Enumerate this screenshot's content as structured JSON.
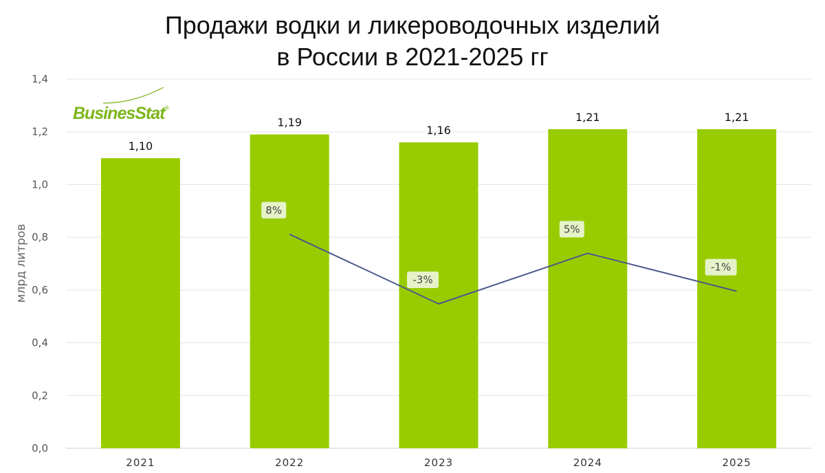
{
  "title_line1": "Продажи водки и ликероводочных изделий",
  "title_line2": "в России в 2021-2025 гг",
  "logo": {
    "text": "BusinesStat",
    "mark": "®",
    "color": "#7db51a"
  },
  "colors": {
    "bar": "#99cc00",
    "line": "#4a5a8a",
    "pct_box": "#e6f2c8",
    "grid": "#e3e3e3"
  },
  "chart_data": {
    "type": "bar",
    "categories": [
      "2021",
      "2022",
      "2023",
      "2024",
      "2025"
    ],
    "values": [
      1.1,
      1.19,
      1.16,
      1.21,
      1.21
    ],
    "value_labels": [
      "1,10",
      "1,19",
      "1,16",
      "1,21",
      "1,21"
    ],
    "ylabel": "млрд литров",
    "ylim": [
      0,
      1.4
    ],
    "yticks": [
      0,
      0.2,
      0.4,
      0.6,
      0.8,
      1.0,
      1.2,
      1.4
    ],
    "ytick_labels": [
      "0,0",
      "0,2",
      "0,4",
      "0,6",
      "0,8",
      "1,0",
      "1,2",
      "1,4"
    ],
    "grid": true,
    "growth": {
      "type": "line",
      "categories": [
        "2022",
        "2023",
        "2024",
        "2025"
      ],
      "values": [
        8,
        -3,
        5,
        -1
      ],
      "labels": [
        "8%",
        "-3%",
        "5%",
        "-1%"
      ],
      "unit": "%"
    }
  }
}
